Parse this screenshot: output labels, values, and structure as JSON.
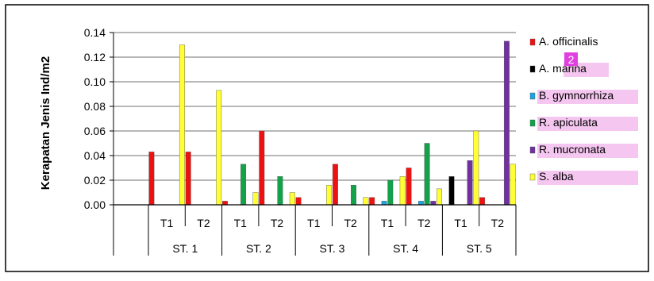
{
  "chart_data": {
    "type": "bar",
    "ylabel": "Kerapatan Jenis Ind/m2",
    "ylim": [
      0,
      0.14
    ],
    "yticks": [
      "0.00",
      "0.02",
      "0.04",
      "0.06",
      "0.08",
      "0.10",
      "0.12",
      "0.14"
    ],
    "ytick_values": [
      0,
      0.02,
      0.04,
      0.06,
      0.08,
      0.1,
      0.12,
      0.14
    ],
    "grid": true,
    "legend_position": "right",
    "groups": [
      "ST. 1",
      "ST. 2",
      "ST. 3",
      "ST. 4",
      "ST. 5"
    ],
    "subgroups": [
      "T1",
      "T2"
    ],
    "categories": [
      "T1",
      "T2",
      "T1",
      "T2",
      "T1",
      "T2",
      "T1",
      "T2",
      "T1",
      "T2"
    ],
    "series": [
      {
        "name": "A. officinalis",
        "color": "#ee1111",
        "values": [
          0.043,
          0.043,
          0.003,
          0.06,
          0.006,
          0.033,
          0.006,
          0.03,
          0,
          0.006
        ]
      },
      {
        "name": "A. marina",
        "color": "#000000",
        "values": [
          0,
          0,
          0,
          0,
          0,
          0,
          0,
          0,
          0.023,
          0
        ]
      },
      {
        "name": "B. gymnorrhiza",
        "color": "#1fa2e0",
        "values": [
          0,
          0,
          0,
          0,
          0,
          0,
          0.003,
          0.003,
          0,
          0
        ]
      },
      {
        "name": "R. apiculata",
        "color": "#13a24a",
        "values": [
          0,
          0,
          0.033,
          0.023,
          0,
          0.016,
          0.02,
          0.05,
          0,
          0
        ]
      },
      {
        "name": "R. mucronata",
        "color": "#7030a0",
        "values": [
          0,
          0,
          0,
          0,
          0,
          0,
          0,
          0.003,
          0.036,
          0.133
        ]
      },
      {
        "name": "S. alba",
        "color": "#ffff33",
        "values": [
          0.13,
          0.093,
          0.01,
          0.01,
          0.016,
          0.006,
          0.023,
          0.013,
          0.06,
          0.033
        ]
      }
    ],
    "legend_highlight_color": "#f5c6f0",
    "annotation": {
      "text": "2",
      "color": "#e040e0"
    }
  }
}
